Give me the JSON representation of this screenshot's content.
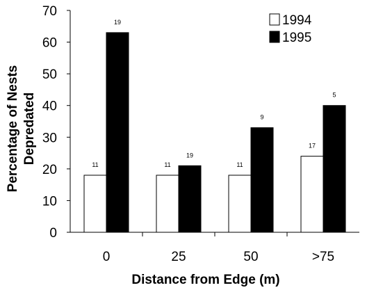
{
  "chart_data": {
    "type": "bar",
    "title": "",
    "xlabel": "Distance from Edge (m)",
    "ylabel": "Percentage of Nests Depredated",
    "ylabel_lines": [
      "Percentage of Nests",
      "Depredated"
    ],
    "categories": [
      "0",
      "25",
      "50",
      ">75"
    ],
    "ylim": [
      0,
      70
    ],
    "yticks": [
      0,
      10,
      20,
      30,
      40,
      50,
      60,
      70
    ],
    "grid": false,
    "legend_position": "top-right",
    "series": [
      {
        "name": "1994",
        "values": [
          18,
          18,
          18,
          24
        ],
        "labels": [
          "11",
          "11",
          "11",
          "17"
        ],
        "fill": "#ffffff"
      },
      {
        "name": "1995",
        "values": [
          63,
          21,
          33,
          40
        ],
        "labels": [
          "19",
          "19",
          "9",
          "5"
        ],
        "fill": "#000000"
      }
    ]
  }
}
